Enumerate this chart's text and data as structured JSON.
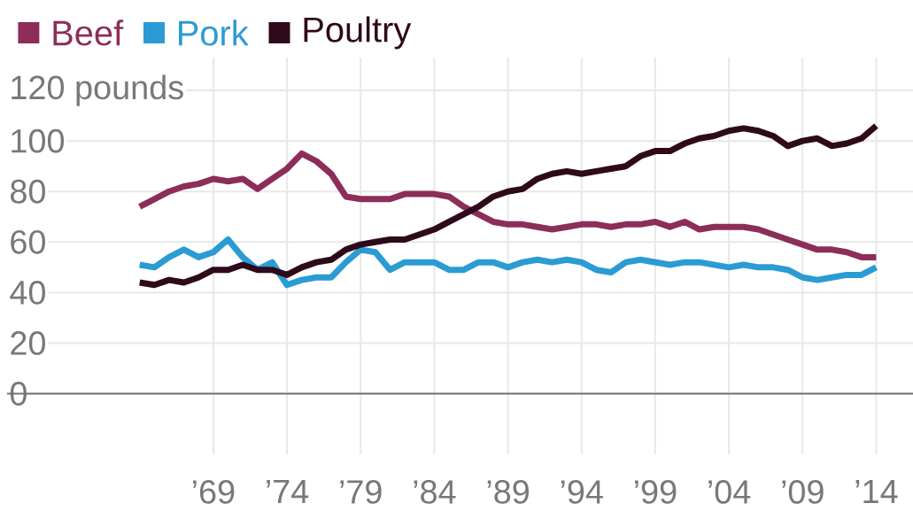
{
  "chart_data": {
    "type": "line",
    "x": [
      1964,
      1965,
      1966,
      1967,
      1968,
      1969,
      1970,
      1971,
      1972,
      1973,
      1974,
      1975,
      1976,
      1977,
      1978,
      1979,
      1980,
      1981,
      1982,
      1983,
      1984,
      1985,
      1986,
      1987,
      1988,
      1989,
      1990,
      1991,
      1992,
      1993,
      1994,
      1995,
      1996,
      1997,
      1998,
      1999,
      2000,
      2001,
      2002,
      2003,
      2004,
      2005,
      2006,
      2007,
      2008,
      2009,
      2010,
      2011,
      2012,
      2013,
      2014
    ],
    "series": [
      {
        "name": "Beef",
        "color": "#8c2d5a",
        "values": [
          74,
          77,
          80,
          82,
          83,
          85,
          84,
          85,
          81,
          85,
          89,
          95,
          92,
          87,
          78,
          77,
          77,
          77,
          79,
          79,
          79,
          78,
          74,
          71,
          68,
          67,
          67,
          66,
          65,
          66,
          67,
          67,
          66,
          67,
          67,
          68,
          66,
          68,
          65,
          66,
          66,
          66,
          65,
          63,
          61,
          59,
          57,
          57,
          56,
          54,
          54
        ]
      },
      {
        "name": "Pork",
        "color": "#2b9bd3",
        "values": [
          51,
          50,
          54,
          57,
          54,
          56,
          61,
          54,
          49,
          52,
          43,
          45,
          46,
          46,
          52,
          57,
          56,
          49,
          52,
          52,
          52,
          49,
          49,
          52,
          52,
          50,
          52,
          53,
          52,
          53,
          52,
          49,
          48,
          52,
          53,
          52,
          51,
          52,
          52,
          51,
          50,
          51,
          50,
          50,
          49,
          46,
          45,
          46,
          47,
          47,
          50
        ]
      },
      {
        "name": "Poultry",
        "color": "#2e0a1a",
        "values": [
          44,
          43,
          45,
          44,
          46,
          49,
          49,
          51,
          49,
          49,
          47,
          50,
          52,
          53,
          57,
          59,
          60,
          61,
          61,
          63,
          65,
          68,
          71,
          74,
          78,
          80,
          81,
          85,
          87,
          88,
          87,
          88,
          89,
          90,
          94,
          96,
          96,
          99,
          101,
          102,
          104,
          105,
          104,
          102,
          98,
          100,
          101,
          98,
          99,
          101,
          106
        ]
      }
    ],
    "xlim": [
      1955,
      2016.5
    ],
    "xticks": [
      {
        "value": 1969,
        "label": "’69"
      },
      {
        "value": 1974,
        "label": "’74"
      },
      {
        "value": 1979,
        "label": "’79"
      },
      {
        "value": 1984,
        "label": "’84"
      },
      {
        "value": 1989,
        "label": "’89"
      },
      {
        "value": 1994,
        "label": "’94"
      },
      {
        "value": 1999,
        "label": "’99"
      },
      {
        "value": 2004,
        "label": "’04"
      },
      {
        "value": 2009,
        "label": "’09"
      },
      {
        "value": 2014,
        "label": "’14"
      }
    ],
    "ylim": [
      -24,
      133
    ],
    "yticks": [
      0,
      20,
      40,
      60,
      80,
      100,
      {
        "value": 120,
        "label": "120 pounds"
      }
    ],
    "grid": true,
    "legend": "top left"
  }
}
